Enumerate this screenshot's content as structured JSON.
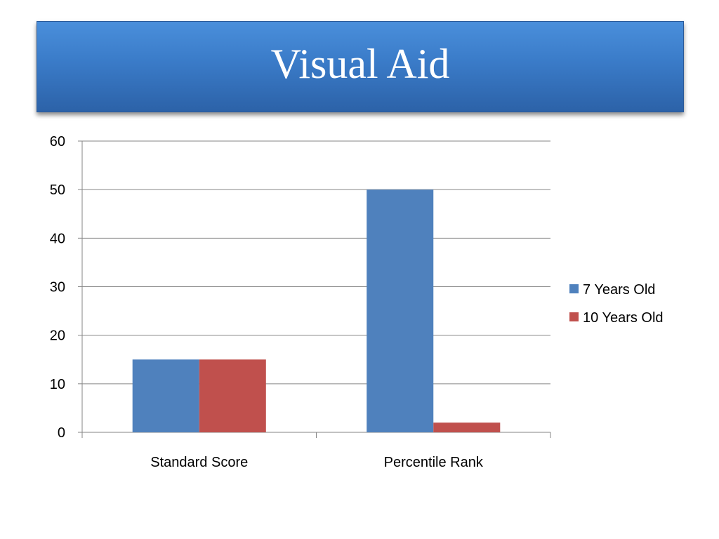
{
  "slide": {
    "title": "Visual Aid"
  },
  "chart_data": {
    "type": "bar",
    "categories": [
      "Standard Score",
      "Percentile Rank"
    ],
    "series": [
      {
        "name": "7 Years Old",
        "values": [
          15,
          50
        ],
        "color": "#4f81bd"
      },
      {
        "name": "10 Years Old",
        "values": [
          15,
          2
        ],
        "color": "#c0504d"
      }
    ],
    "ylim": [
      0,
      60
    ],
    "yticks": [
      0,
      10,
      20,
      30,
      40,
      50,
      60
    ],
    "grid": true,
    "legend_position": "right"
  }
}
